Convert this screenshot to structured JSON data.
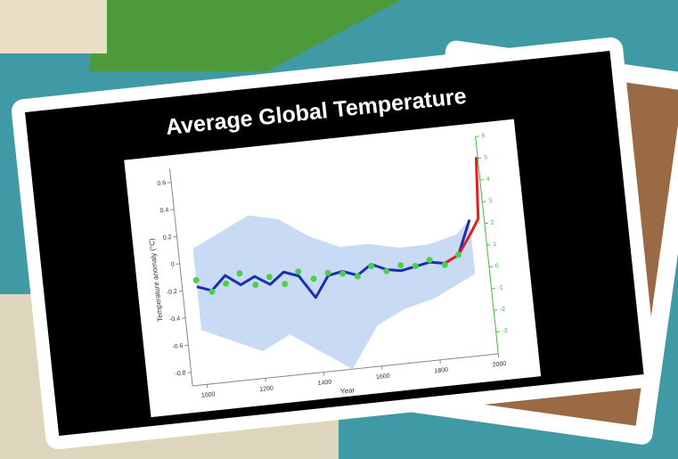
{
  "chart_data": {
    "type": "line",
    "title": "Average Global Temperature",
    "x_label": "Year",
    "y_label": "Temperature anomaly (°C)",
    "xlim": [
      950,
      2000
    ],
    "xticks": [
      1000,
      1200,
      1400,
      1600,
      1800,
      2000
    ],
    "ylim": [
      -0.9,
      0.7
    ],
    "yticks": [
      -0.8,
      -0.6,
      -0.4,
      -0.2,
      0,
      0.2,
      0.4,
      0.6
    ],
    "y2lim": [
      -4,
      6
    ],
    "y2ticks": [
      -3,
      -2,
      -1,
      0,
      1,
      2,
      3,
      4,
      5,
      6
    ],
    "y2_color": "#3fbf3f",
    "band": {
      "color": "#c9daf5",
      "x": [
        1000,
        1100,
        1200,
        1300,
        1400,
        1500,
        1600,
        1700,
        1800,
        1900,
        1950
      ],
      "upper": [
        0.1,
        0.2,
        0.3,
        0.25,
        0.1,
        0.0,
        0.0,
        -0.05,
        -0.05,
        0.0,
        0.1
      ],
      "lower": [
        -0.5,
        -0.6,
        -0.7,
        -0.6,
        -0.75,
        -0.9,
        -0.6,
        -0.5,
        -0.45,
        -0.35,
        -0.3
      ]
    },
    "series": [
      {
        "color": "#1a2fb0",
        "x": [
          1000,
          1050,
          1100,
          1150,
          1200,
          1250,
          1300,
          1350,
          1400,
          1450,
          1500,
          1550,
          1600,
          1650,
          1700,
          1750,
          1800,
          1850,
          1900,
          1950
        ],
        "values": [
          -0.18,
          -0.22,
          -0.12,
          -0.2,
          -0.15,
          -0.22,
          -0.14,
          -0.18,
          -0.35,
          -0.2,
          -0.18,
          -0.22,
          -0.15,
          -0.2,
          -0.22,
          -0.2,
          -0.18,
          -0.2,
          -0.15,
          0.1
        ]
      },
      {
        "color": "#e02020",
        "x": [
          1850,
          1900,
          1950,
          1980,
          1995
        ],
        "values": [
          -0.2,
          -0.15,
          0.0,
          0.1,
          0.55
        ]
      },
      {
        "color": "#4cd04c",
        "axis": "y2",
        "marker": "dot",
        "x": [
          1000,
          1050,
          1100,
          1150,
          1200,
          1250,
          1300,
          1350,
          1400,
          1450,
          1500,
          1550,
          1600,
          1650,
          1700,
          1750,
          1800,
          1850,
          1900
        ],
        "values": [
          0.8,
          0.2,
          0.5,
          0.9,
          0.3,
          0.6,
          0.2,
          0.7,
          0.3,
          0.5,
          0.4,
          0.2,
          0.6,
          0.3,
          0.5,
          0.4,
          0.6,
          0.3,
          0.7
        ]
      }
    ]
  }
}
